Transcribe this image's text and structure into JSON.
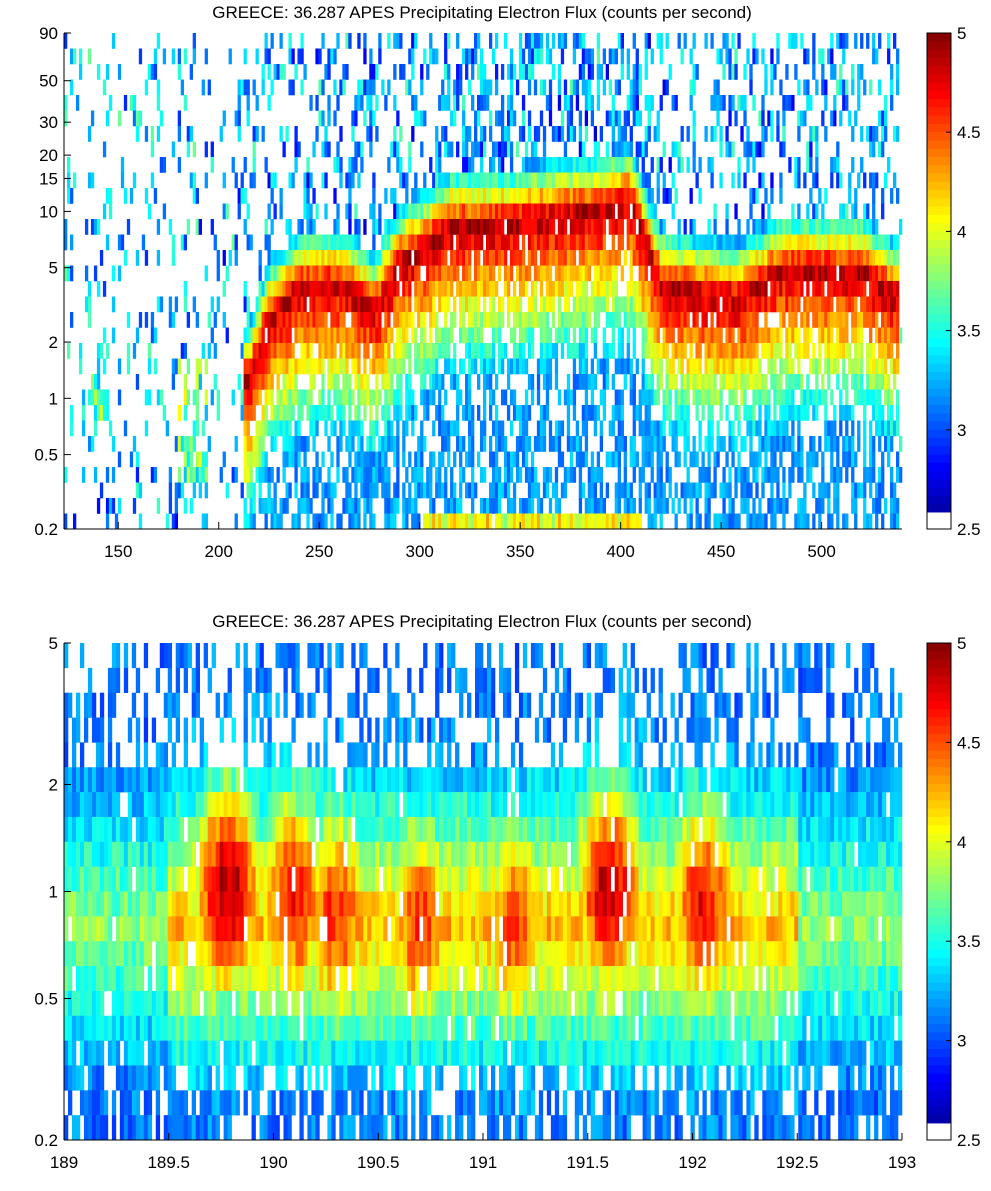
{
  "chart_data": [
    {
      "type": "heatmap",
      "title": "GREECE: 36.287  APES Precipitating Electron Flux (counts per second)",
      "xlabel": "",
      "ylabel": "",
      "xlim": [
        123,
        540
      ],
      "ylim": [
        0.2,
        90
      ],
      "yscale": "log",
      "xticks": [
        150,
        200,
        250,
        300,
        350,
        400,
        450,
        500
      ],
      "yticks": [
        0.2,
        0.5,
        1,
        2,
        5,
        10,
        15,
        20,
        30,
        50,
        90
      ],
      "colorbar": {
        "min": 2.5,
        "max": 5,
        "ticks": [
          2.5,
          3,
          3.5,
          4,
          4.5,
          5
        ],
        "colormap": "jet"
      },
      "peak_band": [
        {
          "x": 215,
          "y": 1.2
        },
        {
          "x": 225,
          "y": 2.6
        },
        {
          "x": 240,
          "y": 3.8
        },
        {
          "x": 260,
          "y": 4.0
        },
        {
          "x": 278,
          "y": 2.9
        },
        {
          "x": 290,
          "y": 5.2
        },
        {
          "x": 300,
          "y": 6.0
        },
        {
          "x": 315,
          "y": 8.0
        },
        {
          "x": 350,
          "y": 8.5
        },
        {
          "x": 390,
          "y": 10.0
        },
        {
          "x": 405,
          "y": 11.0
        },
        {
          "x": 420,
          "y": 4.0
        },
        {
          "x": 440,
          "y": 3.5
        },
        {
          "x": 460,
          "y": 3.4
        },
        {
          "x": 480,
          "y": 4.7
        },
        {
          "x": 520,
          "y": 4.7
        },
        {
          "x": 535,
          "y": 3.5
        }
      ]
    },
    {
      "type": "heatmap",
      "title": "GREECE: 36.287  APES Precipitating Electron Flux (counts per second)",
      "xlabel": "",
      "ylabel": "",
      "xlim": [
        189,
        193
      ],
      "ylim": [
        0.2,
        5
      ],
      "yscale": "log",
      "xticks": [
        189,
        189.5,
        190,
        190.5,
        191,
        191.5,
        192,
        192.5,
        193
      ],
      "yticks": [
        0.2,
        0.5,
        1,
        2,
        5
      ],
      "colorbar": {
        "min": 2.5,
        "max": 5,
        "ticks": [
          2.5,
          3,
          3.5,
          4,
          4.5,
          5
        ],
        "colormap": "jet"
      },
      "bursts": [
        {
          "x": 189.78,
          "y": 1.0,
          "peak": 4.9
        },
        {
          "x": 190.1,
          "y": 0.95,
          "peak": 4.7
        },
        {
          "x": 190.3,
          "y": 0.85,
          "peak": 4.6
        },
        {
          "x": 190.7,
          "y": 0.8,
          "peak": 4.55
        },
        {
          "x": 191.15,
          "y": 0.8,
          "peak": 4.5
        },
        {
          "x": 191.6,
          "y": 1.0,
          "peak": 4.85
        },
        {
          "x": 192.05,
          "y": 0.9,
          "peak": 4.7
        }
      ]
    }
  ]
}
